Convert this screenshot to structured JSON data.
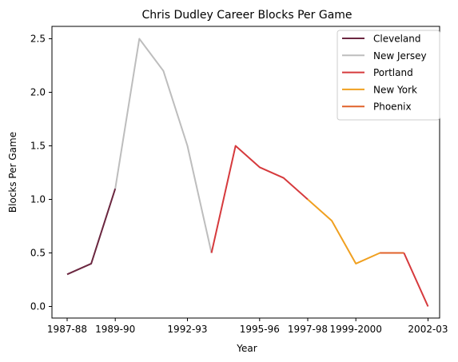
{
  "chart_data": {
    "type": "line",
    "title": "Chris Dudley Career Blocks Per Game",
    "xlabel": "Year",
    "ylabel": "Blocks Per Game",
    "x_ticks": [
      "1987-88",
      "1989-90",
      "1992-93",
      "1995-96",
      "1997-98",
      "1999-2000",
      "2002-03"
    ],
    "y_ticks": [
      "0.0",
      "0.5",
      "1.0",
      "1.5",
      "2.0",
      "2.5"
    ],
    "ylim": [
      -0.1,
      2.6
    ],
    "grid": false,
    "legend_position": "top-right",
    "seasons": [
      "1987-88",
      "1988-89",
      "1989-90",
      "1990-91",
      "1991-92",
      "1992-93",
      "1993-94",
      "1994-95",
      "1995-96",
      "1996-97",
      "1997-98",
      "1998-99",
      "1999-2000",
      "2000-01",
      "2001-02",
      "2002-03"
    ],
    "series": [
      {
        "name": "Cleveland",
        "color": "#6b2740",
        "points": [
          [
            "1987-88",
            0.3
          ],
          [
            "1988-89",
            0.4
          ],
          [
            "1989-90",
            1.1
          ]
        ]
      },
      {
        "name": "New Jersey",
        "color": "#bdbdbd",
        "points": [
          [
            "1989-90",
            1.1
          ],
          [
            "1990-91",
            2.5
          ],
          [
            "1991-92",
            2.2
          ],
          [
            "1992-93",
            1.5
          ],
          [
            "1993-94",
            0.5
          ]
        ]
      },
      {
        "name": "Portland",
        "color": "#d63a3d",
        "points": [
          [
            "1993-94",
            0.5
          ],
          [
            "1994-95",
            1.5
          ],
          [
            "1995-96",
            1.3
          ],
          [
            "1996-97",
            1.2
          ],
          [
            "1997-98",
            1.0
          ]
        ]
      },
      {
        "name": "New York",
        "color": "#f0a020",
        "points": [
          [
            "1997-98",
            1.0
          ],
          [
            "1998-99",
            0.8
          ],
          [
            "1999-2000",
            0.4
          ],
          [
            "2000-01",
            0.5
          ],
          [
            "2001-02",
            0.5
          ]
        ]
      },
      {
        "name": "Phoenix",
        "color": "#e0622a",
        "points": [
          [
            "2000-01",
            0.5
          ],
          [
            "2001-02",
            0.5
          ]
        ]
      },
      {
        "name": "Portland",
        "color": "#d63a3d",
        "show_in_legend": false,
        "points": [
          [
            "2001-02",
            0.5
          ],
          [
            "2002-03",
            0.0
          ]
        ]
      }
    ]
  }
}
